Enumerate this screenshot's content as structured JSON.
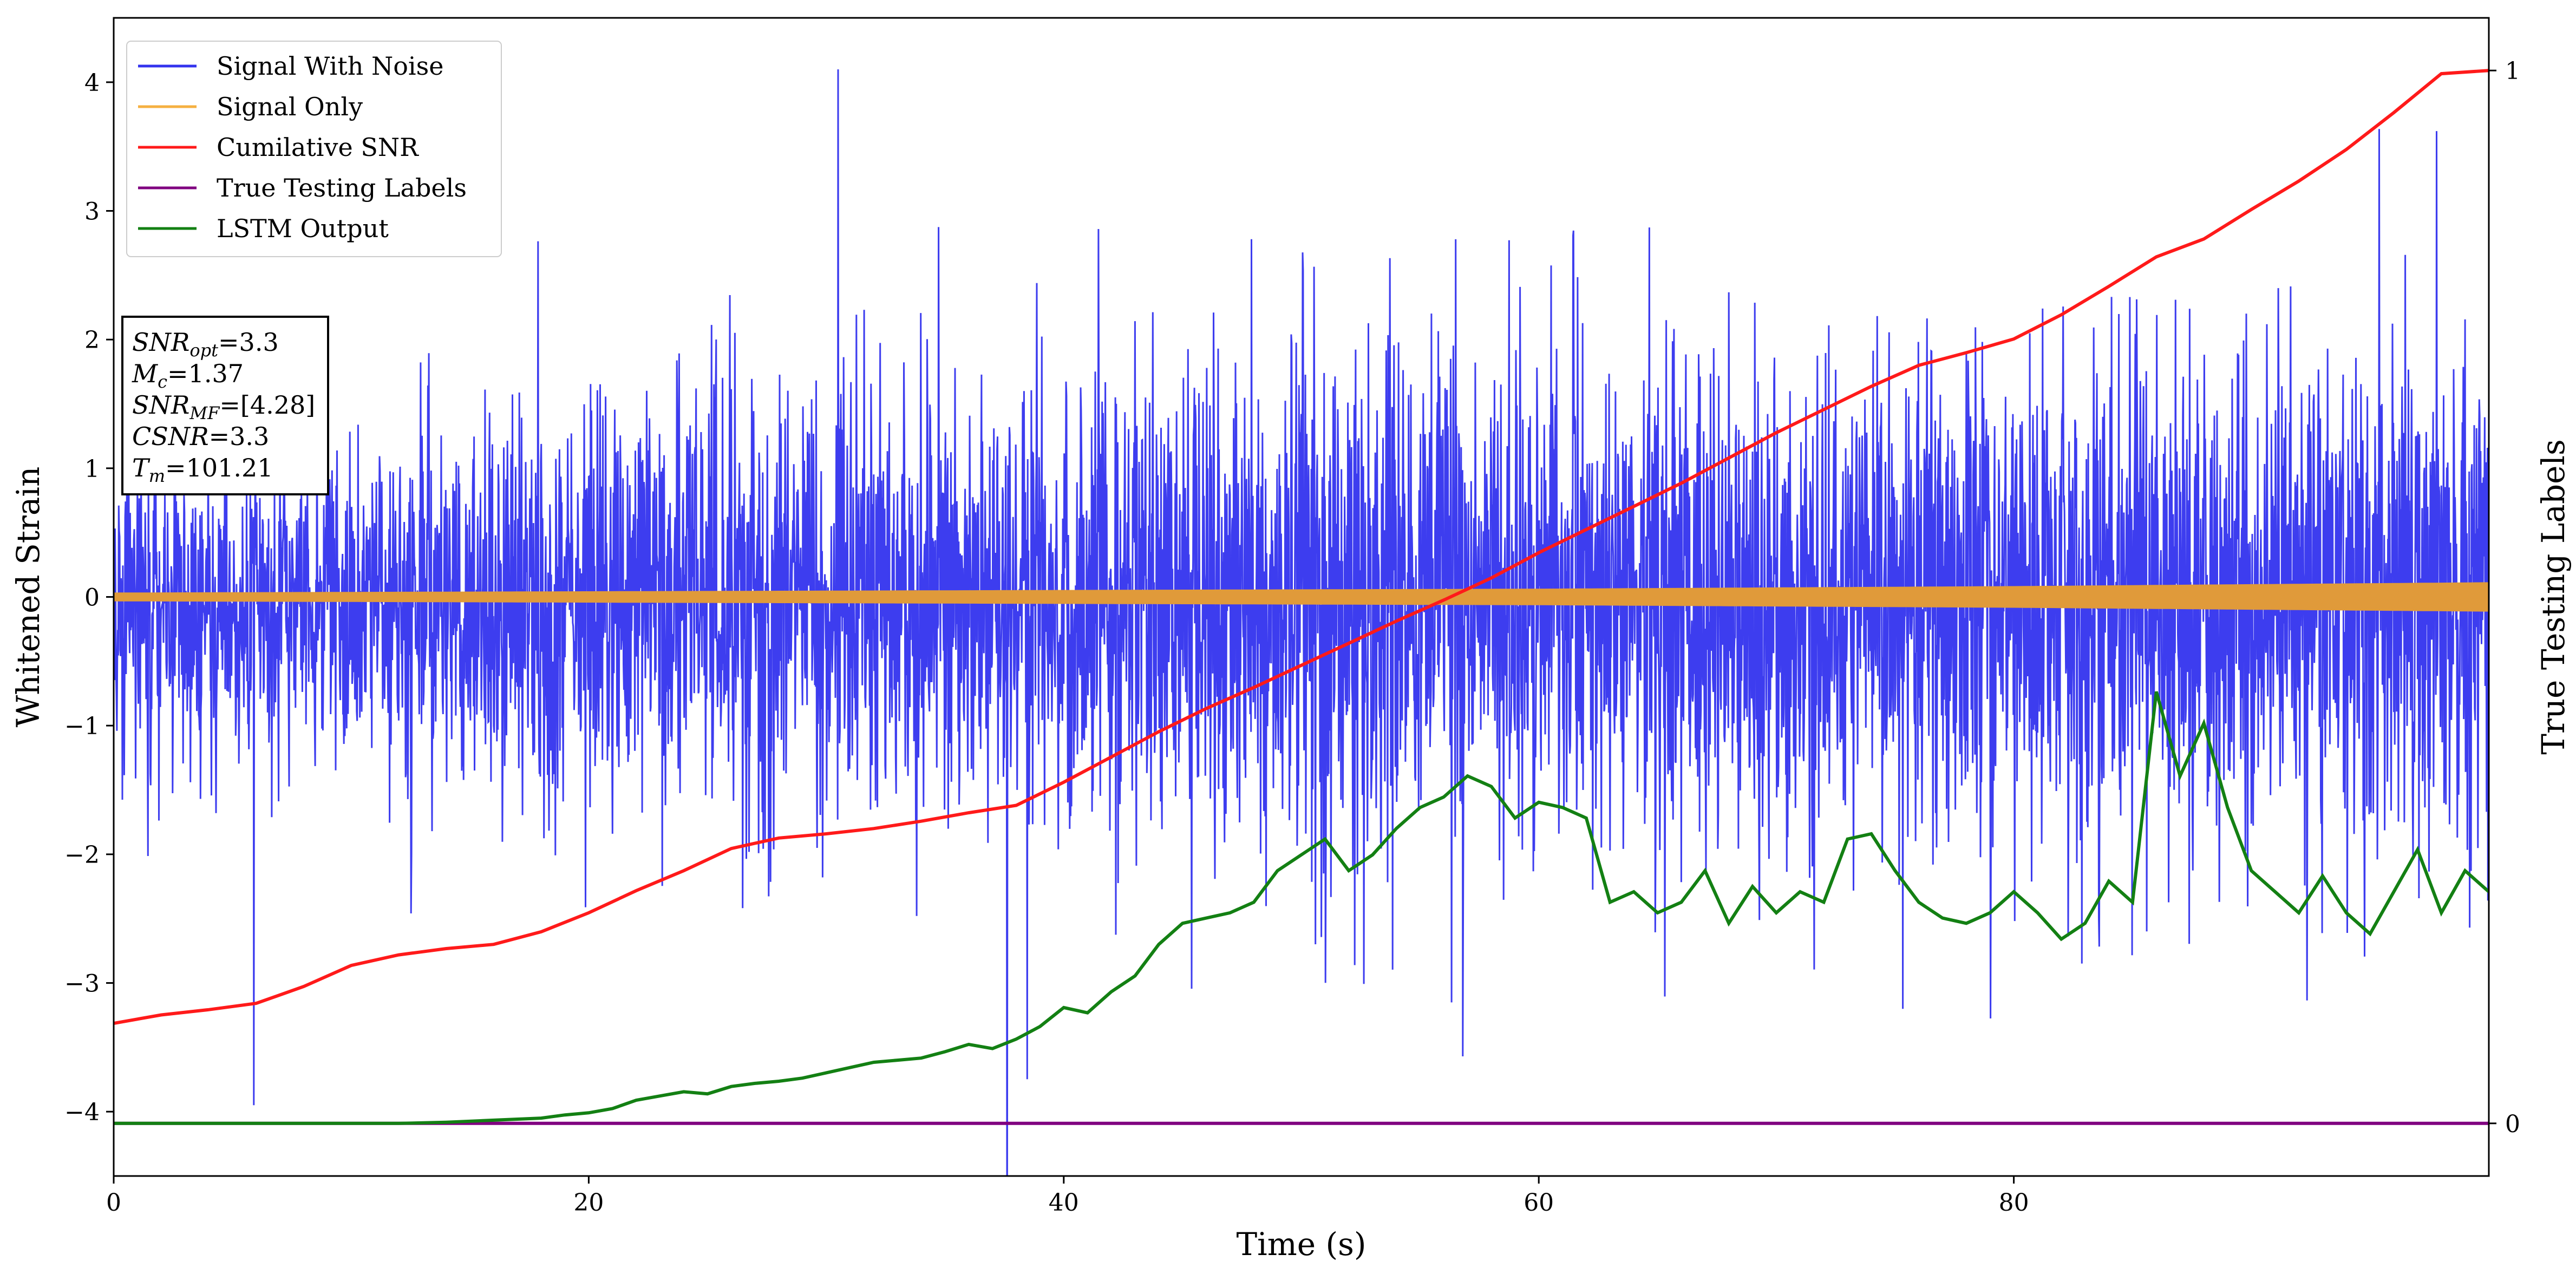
{
  "chart_data": {
    "type": "line",
    "xlabel": "Time (s)",
    "ylabel": "Whitened Strain",
    "ylabel_right": "True Testing Labels",
    "xlim": [
      0,
      100
    ],
    "ylim": [
      -4.5,
      4.5
    ],
    "ylim_right": [
      -0.05,
      1.05
    ],
    "xticks": [
      0,
      20,
      40,
      60,
      80
    ],
    "yticks": [
      -4,
      -3,
      -2,
      -1,
      0,
      1,
      2,
      3,
      4
    ],
    "yticks_right": [
      0,
      1
    ],
    "xtick_labels": [
      "0",
      "20",
      "40",
      "60",
      "80"
    ],
    "ytick_labels": [
      "−4",
      "−3",
      "−2",
      "−1",
      "0",
      "1",
      "2",
      "3",
      "4"
    ],
    "ytick_labels_right": [
      "0",
      "1"
    ],
    "legend_position": "top-left",
    "legend": [
      {
        "name": "Signal With Noise",
        "color": "#3333ee"
      },
      {
        "name": "Signal Only",
        "color": "#f5b041"
      },
      {
        "name": "Cumilative SNR",
        "color": "#ff1a1a"
      },
      {
        "name": "True Testing Labels",
        "color": "#800080"
      },
      {
        "name": "LSTM Output",
        "color": "#138013"
      }
    ],
    "annotation": [
      {
        "base": "SNR",
        "sub": "opt",
        "rest": "=3.3"
      },
      {
        "base": "M",
        "sub": "c",
        "rest": "=1.37"
      },
      {
        "base": "SNR",
        "sub": "MF",
        "rest": "=[4.28]"
      },
      {
        "base": "CSNR",
        "sub": "",
        "rest": "=3.3"
      },
      {
        "base": "T",
        "sub": "m",
        "rest": "=101.21"
      }
    ],
    "series": [
      {
        "name": "Signal With Noise",
        "axis": "left",
        "color": "#3333ee",
        "description": "dense noisy strain, roughly within ±3.5",
        "peaks": [
          {
            "x": 30.5,
            "y": 4.1
          },
          {
            "x": 5.9,
            "y": -3.95
          },
          {
            "x": 56.8,
            "y": -3.57
          },
          {
            "x": 97.8,
            "y": 3.62
          }
        ],
        "typical_upper": [
          0.9,
          1.0,
          1.4,
          1.6,
          1.8,
          2.0,
          1.8,
          1.9,
          2.0,
          1.9,
          2.0
        ],
        "typical_lower": [
          -1.4,
          -1.5,
          -1.8,
          -2.0,
          -2.0,
          -2.1,
          -2.0,
          -2.1,
          -2.0,
          -2.1,
          -2.0
        ],
        "x_samples": [
          0,
          10,
          20,
          30,
          40,
          50,
          60,
          70,
          80,
          90,
          100
        ]
      },
      {
        "name": "Signal Only",
        "axis": "left",
        "color": "#f5b041",
        "x": [
          0,
          20,
          40,
          60,
          80,
          100
        ],
        "amplitude": [
          0.03,
          0.04,
          0.05,
          0.06,
          0.08,
          0.11
        ]
      },
      {
        "name": "Cumilative SNR",
        "axis": "right",
        "color": "#ff1a1a",
        "x": [
          0,
          2,
          4,
          6,
          8,
          10,
          12,
          14,
          16,
          18,
          20,
          22,
          24,
          26,
          28,
          30,
          32,
          34,
          36,
          38,
          40,
          42,
          44,
          46,
          48,
          50,
          52,
          54,
          56,
          58,
          60,
          62,
          64,
          66,
          68,
          70,
          72,
          74,
          76,
          78,
          80,
          82,
          84,
          86,
          88,
          90,
          92,
          94,
          96,
          98,
          100
        ],
        "y": [
          0.095,
          0.103,
          0.108,
          0.114,
          0.13,
          0.15,
          0.16,
          0.166,
          0.17,
          0.182,
          0.2,
          0.221,
          0.24,
          0.261,
          0.271,
          0.275,
          0.28,
          0.287,
          0.295,
          0.302,
          0.324,
          0.348,
          0.372,
          0.394,
          0.414,
          0.435,
          0.456,
          0.477,
          0.497,
          0.518,
          0.542,
          0.564,
          0.586,
          0.608,
          0.632,
          0.656,
          0.678,
          0.7,
          0.72,
          0.732,
          0.745,
          0.768,
          0.795,
          0.823,
          0.84,
          0.868,
          0.895,
          0.925,
          0.96,
          0.997,
          1.0
        ]
      },
      {
        "name": "True Testing Labels",
        "axis": "right",
        "color": "#800080",
        "x": [
          0,
          100
        ],
        "y": [
          0,
          0
        ]
      },
      {
        "name": "LSTM Output",
        "axis": "right",
        "color": "#138013",
        "x": [
          0,
          5,
          10,
          12,
          14,
          16,
          18,
          19,
          20,
          21,
          22,
          23,
          24,
          25,
          26,
          27,
          28,
          29,
          30,
          31,
          32,
          33,
          34,
          35,
          36,
          37,
          38,
          39,
          40,
          41,
          42,
          43,
          44,
          45,
          46,
          47,
          48,
          49,
          50,
          51,
          52,
          53,
          54,
          55,
          56,
          57,
          58,
          59,
          60,
          61,
          62,
          63,
          64,
          65,
          66,
          67,
          68,
          69,
          70,
          71,
          72,
          73,
          74,
          75,
          76,
          77,
          78,
          79,
          80,
          81,
          82,
          83,
          84,
          85,
          86,
          87,
          88,
          89,
          90,
          91,
          92,
          93,
          94,
          95,
          96,
          97,
          98,
          99,
          100
        ],
        "y": [
          0.0,
          0.0,
          0.0,
          0.0,
          0.001,
          0.003,
          0.005,
          0.008,
          0.01,
          0.014,
          0.022,
          0.026,
          0.03,
          0.028,
          0.035,
          0.038,
          0.04,
          0.043,
          0.048,
          0.053,
          0.058,
          0.06,
          0.062,
          0.068,
          0.075,
          0.071,
          0.08,
          0.092,
          0.11,
          0.105,
          0.125,
          0.14,
          0.17,
          0.19,
          0.195,
          0.2,
          0.21,
          0.24,
          0.255,
          0.27,
          0.24,
          0.255,
          0.28,
          0.3,
          0.31,
          0.33,
          0.32,
          0.29,
          0.305,
          0.3,
          0.29,
          0.21,
          0.22,
          0.2,
          0.21,
          0.24,
          0.19,
          0.225,
          0.2,
          0.22,
          0.21,
          0.27,
          0.275,
          0.24,
          0.21,
          0.195,
          0.19,
          0.2,
          0.22,
          0.2,
          0.175,
          0.19,
          0.23,
          0.21,
          0.41,
          0.33,
          0.38,
          0.3,
          0.24,
          0.22,
          0.2,
          0.235,
          0.2,
          0.18,
          0.22,
          0.26,
          0.2,
          0.24,
          0.22
        ]
      }
    ]
  }
}
